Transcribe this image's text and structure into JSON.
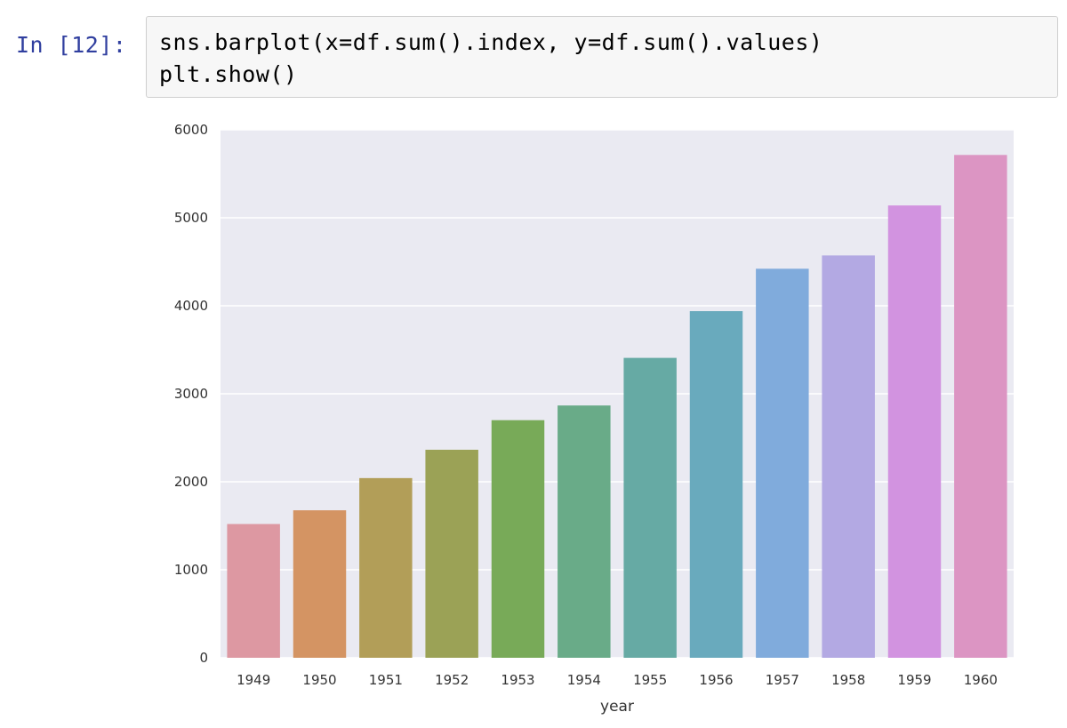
{
  "cell": {
    "prompt": "In [12]:",
    "code_lines": [
      "sns.barplot(x=df.sum().index, y=df.sum().values)",
      "plt.show()"
    ]
  },
  "colors": {
    "plot_background": "#eaeaf2",
    "grid": "#ffffff",
    "prompt": "#303f9f",
    "bars": [
      "#dd98a2",
      "#d49463",
      "#b29e58",
      "#9ba256",
      "#78aa58",
      "#69ab88",
      "#66aaa4",
      "#69aabd",
      "#80abdc",
      "#b3a9e3",
      "#d293e0",
      "#dc95c3"
    ]
  },
  "chart_data": {
    "type": "bar",
    "categories": [
      "1949",
      "1950",
      "1951",
      "1952",
      "1953",
      "1954",
      "1955",
      "1956",
      "1957",
      "1958",
      "1959",
      "1960"
    ],
    "values": [
      1520,
      1676,
      2042,
      2364,
      2700,
      2867,
      3408,
      3939,
      4421,
      4572,
      5140,
      5714
    ],
    "title": "",
    "xlabel": "year",
    "ylabel": "",
    "ylim": [
      0,
      6000
    ],
    "yticks": [
      "0",
      "1000",
      "2000",
      "3000",
      "4000",
      "5000",
      "6000"
    ],
    "grid": true,
    "legend": "none"
  }
}
